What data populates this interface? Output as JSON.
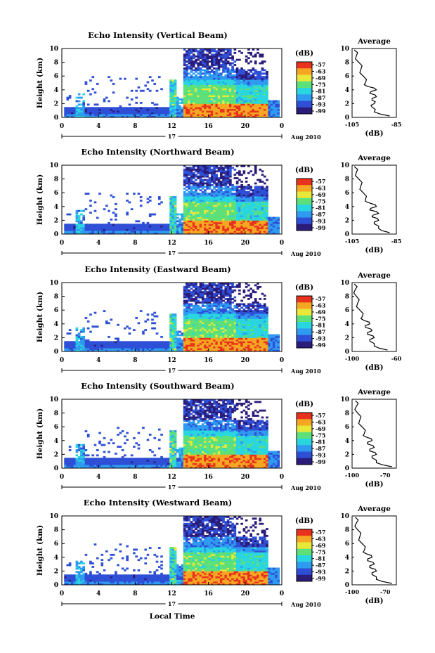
{
  "common": {
    "ylabel": "Height (km)",
    "y_ticks": [
      "0",
      "2",
      "4",
      "6",
      "8",
      "10"
    ],
    "x_ticks": [
      "0",
      "4",
      "8",
      "12",
      "16",
      "20",
      "0"
    ],
    "day_label": "17",
    "date_label": "Aug 2010",
    "colorbar_unit": "(dB)",
    "avg_title": "Average",
    "avg_xlabel": "(dB)",
    "xlabel": "Local Time"
  },
  "chart_data": [
    {
      "type": "heatmap",
      "title": "Echo Intensity (Vertical Beam)",
      "xlabel": "",
      "ylabel": "Height (km)",
      "xlim": [
        0,
        24
      ],
      "ylim": [
        0,
        10
      ],
      "colorbar_ticks": [
        "-57",
        "-63",
        "-69",
        "-75",
        "-81",
        "-87",
        "-93",
        "-99"
      ],
      "average": {
        "x_ticks": [
          "-105",
          "-85"
        ],
        "xlim": [
          -105,
          -85
        ],
        "profile": [
          [
            0.2,
            -88
          ],
          [
            0.8,
            -95
          ],
          [
            1.5,
            -96
          ],
          [
            2,
            -95
          ],
          [
            2.5,
            -96
          ],
          [
            3,
            -94
          ],
          [
            3.5,
            -97
          ],
          [
            4,
            -94
          ],
          [
            4.5,
            -98
          ],
          [
            5,
            -99
          ],
          [
            6,
            -100
          ],
          [
            7,
            -101
          ],
          [
            8,
            -102
          ],
          [
            9,
            -103
          ],
          [
            9.8,
            -104
          ]
        ]
      }
    },
    {
      "type": "heatmap",
      "title": "Echo Intensity (Northward Beam)",
      "xlabel": "",
      "ylabel": "Height (km)",
      "xlim": [
        0,
        24
      ],
      "ylim": [
        0,
        10
      ],
      "colorbar_ticks": [
        "-57",
        "-63",
        "-69",
        "-75",
        "-81",
        "-87",
        "-93",
        "-99"
      ],
      "average": {
        "x_ticks": [
          "-105",
          "-85"
        ],
        "xlim": [
          -105,
          -85
        ],
        "profile": [
          [
            0.2,
            -88
          ],
          [
            0.8,
            -93
          ],
          [
            1.5,
            -95
          ],
          [
            2,
            -93
          ],
          [
            2.5,
            -96
          ],
          [
            3,
            -93
          ],
          [
            3.5,
            -97
          ],
          [
            4,
            -94
          ],
          [
            4.5,
            -97
          ],
          [
            5,
            -99
          ],
          [
            6,
            -100
          ],
          [
            7,
            -101
          ],
          [
            8,
            -102
          ],
          [
            9,
            -103
          ],
          [
            9.8,
            -104
          ]
        ]
      }
    },
    {
      "type": "heatmap",
      "title": "Echo Intensity (Eastward Beam)",
      "xlabel": "",
      "ylabel": "Height (km)",
      "xlim": [
        0,
        24
      ],
      "ylim": [
        0,
        10
      ],
      "colorbar_ticks": [
        "-57",
        "-63",
        "-69",
        "-75",
        "-81",
        "-87",
        "-93",
        "-99"
      ],
      "average": {
        "x_ticks": [
          "-100",
          "-60"
        ],
        "xlim": [
          -100,
          -60
        ],
        "profile": [
          [
            0.2,
            -68
          ],
          [
            0.8,
            -80
          ],
          [
            1.5,
            -84
          ],
          [
            2,
            -80
          ],
          [
            2.5,
            -86
          ],
          [
            3,
            -82
          ],
          [
            3.5,
            -88
          ],
          [
            4,
            -84
          ],
          [
            4.5,
            -89
          ],
          [
            5,
            -91
          ],
          [
            6,
            -93
          ],
          [
            7,
            -95
          ],
          [
            8,
            -96
          ],
          [
            9,
            -97
          ],
          [
            9.8,
            -98
          ]
        ]
      }
    },
    {
      "type": "heatmap",
      "title": "Echo Intensity (Southward Beam)",
      "xlabel": "",
      "ylabel": "Height (km)",
      "xlim": [
        0,
        24
      ],
      "ylim": [
        0,
        10
      ],
      "colorbar_ticks": [
        "-57",
        "-63",
        "-69",
        "-75",
        "-81",
        "-87",
        "-93",
        "-99"
      ],
      "average": {
        "x_ticks": [
          "-100",
          "-70"
        ],
        "xlim": [
          -100,
          -60
        ],
        "profile": [
          [
            0.2,
            -64
          ],
          [
            0.8,
            -78
          ],
          [
            1.5,
            -82
          ],
          [
            2,
            -78
          ],
          [
            2.5,
            -84
          ],
          [
            3,
            -80
          ],
          [
            3.5,
            -86
          ],
          [
            4,
            -82
          ],
          [
            4.5,
            -87
          ],
          [
            5,
            -89
          ],
          [
            6,
            -91
          ],
          [
            7,
            -93
          ],
          [
            8,
            -95
          ],
          [
            9,
            -96
          ],
          [
            9.8,
            -97
          ]
        ]
      }
    },
    {
      "type": "heatmap",
      "title": "Echo Intensity (Westward Beam)",
      "xlabel": "Local Time",
      "ylabel": "Height (km)",
      "xlim": [
        0,
        24
      ],
      "ylim": [
        0,
        10
      ],
      "colorbar_ticks": [
        "-57",
        "-63",
        "-69",
        "-75",
        "-81",
        "-87",
        "-93",
        "-99"
      ],
      "average": {
        "x_ticks": [
          "-100",
          "-70"
        ],
        "xlim": [
          -100,
          -60
        ],
        "profile": [
          [
            0.2,
            -64
          ],
          [
            0.8,
            -78
          ],
          [
            1.5,
            -82
          ],
          [
            2,
            -78
          ],
          [
            2.5,
            -84
          ],
          [
            3,
            -80
          ],
          [
            3.5,
            -86
          ],
          [
            4,
            -82
          ],
          [
            4.5,
            -87
          ],
          [
            5,
            -89
          ],
          [
            6,
            -91
          ],
          [
            7,
            -93
          ],
          [
            8,
            -95
          ],
          [
            9,
            -96
          ],
          [
            9.8,
            -97
          ]
        ]
      }
    }
  ],
  "colors": {
    "colormap": [
      "#2b1c7a",
      "#2e4fd6",
      "#2f9bf0",
      "#29d6e0",
      "#5de07a",
      "#e8e83a",
      "#f5a623",
      "#e8321d"
    ]
  }
}
